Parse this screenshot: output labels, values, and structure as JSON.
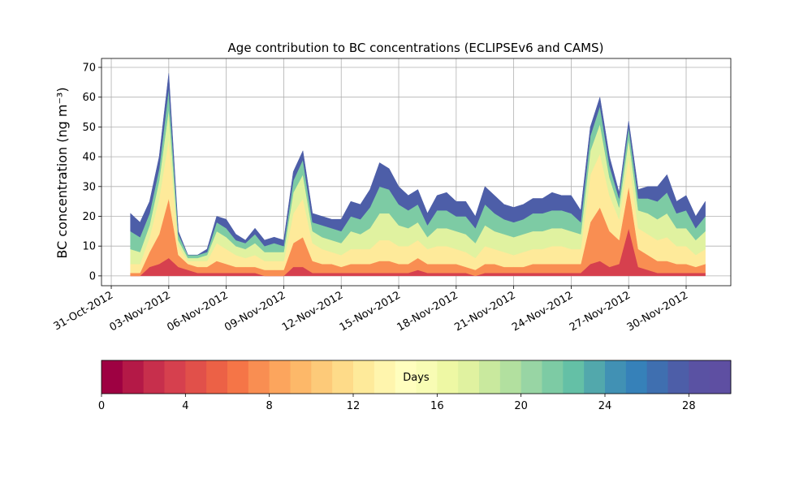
{
  "chart_data": {
    "type": "stacked-area",
    "title": "Age contribution to BC concentrations (ECLIPSEv6 and CAMS)",
    "y_label": "BC concentration (ng m⁻³)",
    "x": [
      1,
      1.5,
      2,
      2.5,
      3,
      3.5,
      4,
      4.5,
      5,
      5.5,
      6,
      6.5,
      7,
      7.5,
      8,
      8.5,
      9,
      9.5,
      10,
      10.5,
      11,
      11.5,
      12,
      12.5,
      13,
      13.5,
      14,
      14.5,
      15,
      15.5,
      16,
      16.5,
      17,
      17.5,
      18,
      18.5,
      19,
      19.5,
      20,
      20.5,
      21,
      21.5,
      22,
      22.5,
      23,
      23.5,
      24,
      24.5,
      25,
      25.5,
      26,
      26.5,
      27,
      27.5,
      28,
      28.5,
      29,
      29.5,
      30,
      30.5,
      31
    ],
    "xlim": [
      -0.51,
      32.33
    ],
    "xticks": [
      {
        "value": 0,
        "label": "31-Oct-2012"
      },
      {
        "value": 3,
        "label": "03-Nov-2012"
      },
      {
        "value": 6,
        "label": "06-Nov-2012"
      },
      {
        "value": 9,
        "label": "09-Nov-2012"
      },
      {
        "value": 12,
        "label": "12-Nov-2012"
      },
      {
        "value": 15,
        "label": "15-Nov-2012"
      },
      {
        "value": 18,
        "label": "18-Nov-2012"
      },
      {
        "value": 21,
        "label": "21-Nov-2012"
      },
      {
        "value": 24,
        "label": "24-Nov-2012"
      },
      {
        "value": 27,
        "label": "27-Nov-2012"
      },
      {
        "value": 30,
        "label": "30-Nov-2012"
      }
    ],
    "ylim": [
      -3.3,
      73
    ],
    "yticks": [
      0,
      10,
      20,
      30,
      40,
      50,
      60,
      70
    ],
    "grid": true,
    "series": [
      {
        "color": "#d6404e",
        "values": [
          0,
          0,
          3,
          4,
          6,
          3,
          2,
          1,
          1,
          1,
          1,
          1,
          1,
          1,
          0,
          0,
          0,
          3,
          3,
          1,
          1,
          1,
          1,
          1,
          1,
          1,
          1,
          1,
          1,
          1,
          2,
          1,
          1,
          1,
          1,
          1,
          0,
          1,
          1,
          1,
          1,
          1,
          1,
          1,
          1,
          1,
          1,
          1,
          4,
          5,
          3,
          4,
          16,
          3,
          2,
          1,
          1,
          1,
          1,
          1,
          1
        ]
      },
      {
        "color": "#f98e52",
        "values": [
          1,
          1,
          5,
          10,
          20,
          4,
          2,
          2,
          2,
          4,
          3,
          2,
          2,
          2,
          2,
          2,
          2,
          8,
          10,
          4,
          3,
          3,
          2,
          3,
          3,
          3,
          4,
          4,
          3,
          3,
          4,
          3,
          3,
          3,
          3,
          2,
          2,
          3,
          3,
          2,
          2,
          2,
          3,
          3,
          3,
          3,
          3,
          3,
          14,
          18,
          12,
          8,
          14,
          6,
          5,
          4,
          4,
          3,
          3,
          2,
          3
        ]
      },
      {
        "color": "#feea9a",
        "values": [
          3,
          3,
          5,
          12,
          20,
          3,
          1,
          2,
          2,
          6,
          5,
          4,
          3,
          4,
          3,
          3,
          3,
          10,
          13,
          6,
          5,
          4,
          4,
          5,
          5,
          5,
          7,
          7,
          6,
          6,
          6,
          5,
          6,
          6,
          5,
          5,
          4,
          6,
          5,
          5,
          4,
          5,
          5,
          5,
          6,
          6,
          5,
          5,
          16,
          18,
          12,
          7,
          10,
          7,
          7,
          7,
          8,
          6,
          6,
          4,
          5
        ]
      },
      {
        "color": "#e0f2a0",
        "values": [
          5,
          4,
          4,
          6,
          10,
          2,
          1,
          1,
          2,
          4,
          4,
          3,
          3,
          4,
          3,
          3,
          3,
          7,
          8,
          4,
          4,
          4,
          4,
          6,
          5,
          7,
          9,
          9,
          7,
          6,
          6,
          4,
          6,
          6,
          6,
          6,
          5,
          7,
          6,
          6,
          6,
          6,
          6,
          6,
          6,
          6,
          6,
          5,
          8,
          10,
          6,
          4,
          6,
          6,
          7,
          7,
          8,
          6,
          6,
          5,
          6
        ]
      },
      {
        "color": "#7dcba4",
        "values": [
          6,
          5,
          4,
          4,
          7,
          2,
          1,
          1,
          1,
          3,
          3,
          2,
          2,
          3,
          2,
          3,
          2,
          4,
          5,
          3,
          4,
          4,
          4,
          5,
          5,
          7,
          9,
          8,
          7,
          6,
          6,
          4,
          6,
          6,
          5,
          6,
          5,
          7,
          6,
          5,
          5,
          5,
          6,
          6,
          6,
          6,
          6,
          4,
          5,
          6,
          4,
          3,
          4,
          4,
          5,
          6,
          7,
          5,
          6,
          4,
          5
        ]
      },
      {
        "color": "#4d5ea8",
        "values": [
          6,
          5,
          4,
          4,
          5,
          1,
          0,
          0,
          1,
          2,
          3,
          2,
          1,
          2,
          2,
          2,
          2,
          3,
          3,
          3,
          3,
          3,
          4,
          5,
          5,
          6,
          8,
          7,
          6,
          5,
          5,
          4,
          5,
          6,
          5,
          5,
          4,
          6,
          6,
          5,
          5,
          5,
          5,
          5,
          6,
          5,
          6,
          4,
          3,
          3,
          3,
          2,
          2,
          3,
          4,
          5,
          6,
          4,
          5,
          4,
          5
        ]
      }
    ],
    "colorbar": {
      "label": "Days",
      "lim": [
        0,
        30
      ],
      "ticks": [
        0,
        4,
        8,
        12,
        16,
        20,
        24,
        28
      ],
      "colors": [
        "#9e0142",
        "#b41947",
        "#c72f4c",
        "#d6404e",
        "#e1504a",
        "#ec6146",
        "#f57547",
        "#f98e52",
        "#fca55d",
        "#fdb869",
        "#fdca79",
        "#fedb89",
        "#feea9a",
        "#fff5ad",
        "#fffebe",
        "#f8fcb4",
        "#eef8a4",
        "#e0f2a0",
        "#c9e99e",
        "#b2e09f",
        "#98d5a4",
        "#7dcba4",
        "#64c0a6",
        "#52a8ac",
        "#4191b4",
        "#3681b9",
        "#3f6fb0",
        "#4d5ea8",
        "#5a52a3",
        "#5e4fa2"
      ]
    }
  }
}
